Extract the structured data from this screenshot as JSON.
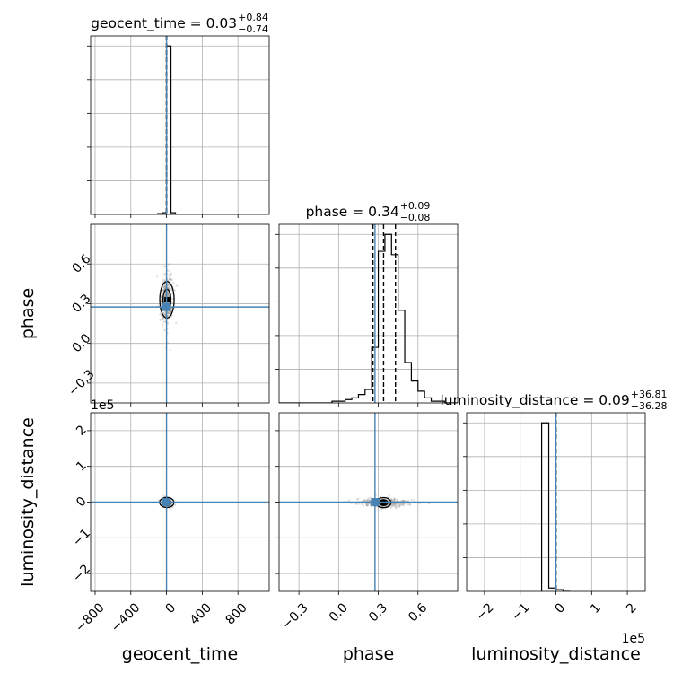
{
  "chart_data": {
    "type": "corner",
    "parameters": [
      {
        "name": "geocent_time",
        "label": "geocent_time",
        "range": [
          -850,
          1150
        ],
        "ticks": [
          -800,
          -400,
          0,
          400,
          800
        ],
        "tick_labels": [
          "−800",
          "−400",
          "0",
          "400",
          "800"
        ],
        "injection": 0
      },
      {
        "name": "phase",
        "label": "phase",
        "range": [
          -0.45,
          0.9
        ],
        "ticks": [
          -0.3,
          0.0,
          0.3,
          0.6
        ],
        "tick_labels": [
          "−0.3",
          "0.0",
          "0.3",
          "0.6"
        ],
        "injection": 0.275
      },
      {
        "name": "luminosity_distance",
        "label": "luminosity_distance",
        "range": [
          -250000,
          250000
        ],
        "ticks": [
          -200000,
          -100000,
          0,
          100000,
          200000
        ],
        "tick_labels": [
          "−2",
          "−1",
          "0",
          "1",
          "2"
        ],
        "offset_text": "1e5",
        "injection": 0
      }
    ],
    "titles": [
      {
        "base": "geocent_time = 0.03",
        "sup": "+0.84",
        "sub": "−0.74"
      },
      {
        "base": "phase = 0.34",
        "sup": "+0.09",
        "sub": "−0.08"
      },
      {
        "base": "luminosity_distance = 0.09",
        "sup": "+36.81",
        "sub": "−36.28"
      }
    ],
    "histograms": [
      {
        "param": "geocent_time",
        "bin_edges": [
          -100,
          -50,
          0,
          50,
          100,
          150
        ],
        "counts": [
          0.005,
          0.01,
          1.0,
          0.01,
          0.0
        ],
        "quantiles": [
          -0.71,
          0.03,
          0.87
        ]
      },
      {
        "param": "phase",
        "bin_edges": [
          -0.45,
          -0.4,
          -0.35,
          -0.3,
          -0.25,
          -0.2,
          -0.15,
          -0.1,
          -0.05,
          0.0,
          0.05,
          0.1,
          0.15,
          0.2,
          0.25,
          0.3,
          0.35,
          0.4,
          0.45,
          0.5,
          0.55,
          0.6,
          0.65,
          0.7,
          0.75,
          0.8,
          0.85,
          0.9
        ],
        "counts": [
          0,
          0,
          0,
          0,
          0,
          0,
          0,
          0,
          0.01,
          0.01,
          0.02,
          0.03,
          0.05,
          0.08,
          0.33,
          0.9,
          1.0,
          0.88,
          0.55,
          0.24,
          0.13,
          0.07,
          0.03,
          0.01,
          0.01,
          0,
          0
        ],
        "quantiles": [
          0.26,
          0.34,
          0.43
        ]
      },
      {
        "param": "luminosity_distance",
        "bin_edges": [
          -40000,
          -20000,
          0,
          20000,
          40000
        ],
        "counts": [
          1.0,
          0.02,
          0.01,
          0.0
        ],
        "quantiles": [
          -36.28,
          0.09,
          36.9
        ]
      }
    ],
    "pairs": [
      {
        "x": "geocent_time",
        "y": "phase",
        "center": [
          5,
          0.33
        ],
        "spread": [
          28,
          0.09
        ]
      },
      {
        "x": "geocent_time",
        "y": "luminosity_distance",
        "center": [
          3,
          -1000
        ],
        "spread": [
          22,
          6000
        ]
      },
      {
        "x": "phase",
        "y": "luminosity_distance",
        "center": [
          0.34,
          -1500
        ],
        "spread": [
          0.08,
          5500
        ]
      }
    ],
    "colors": {
      "truth": "#4682b4",
      "hist": "#000000",
      "grid": "#b0b0b0",
      "samples": "#999999"
    },
    "grid": true
  }
}
